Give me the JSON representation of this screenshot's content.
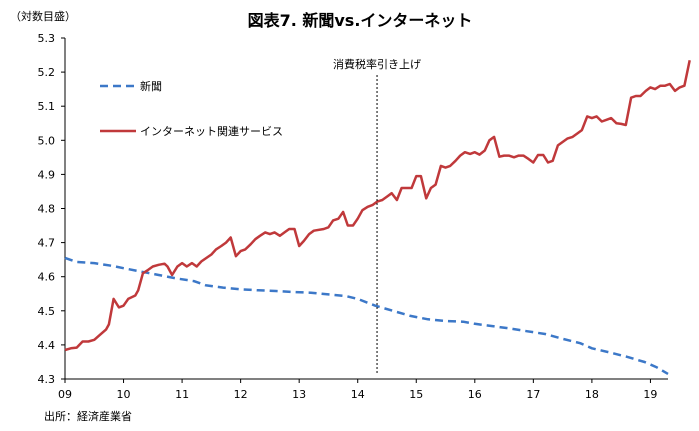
{
  "chart_data": {
    "type": "line",
    "title": "図表7. 新聞vs.インターネット",
    "ylabel": "（対数目盛）",
    "ylim": [
      4.3,
      5.3
    ],
    "yticks": [
      4.3,
      4.4,
      4.5,
      4.6,
      4.7,
      4.8,
      4.9,
      5.0,
      5.1,
      5.2,
      5.3
    ],
    "ytick_labels": [
      "4.3",
      "4.4",
      "4.5",
      "4.6",
      "4.7",
      "4.8",
      "4.9",
      "5.0",
      "5.1",
      "5.2",
      "5.3"
    ],
    "xlim": [
      2009.0,
      2019.3
    ],
    "xticks": [
      2009,
      2010,
      2011,
      2012,
      2013,
      2014,
      2015,
      2016,
      2017,
      2018,
      2019
    ],
    "xtick_labels": [
      "09",
      "10",
      "11",
      "12",
      "13",
      "14",
      "15",
      "16",
      "17",
      "18",
      "19"
    ],
    "annotation": {
      "label": "消費税率引き上げ",
      "x": 2014.33
    },
    "source": "出所：経済産業省",
    "series": [
      {
        "name": "新聞",
        "color": "#3c78c8",
        "style": "dashed",
        "points": [
          [
            2009.0,
            4.655
          ],
          [
            2009.2,
            4.643
          ],
          [
            2009.5,
            4.64
          ],
          [
            2009.8,
            4.632
          ],
          [
            2010.0,
            4.625
          ],
          [
            2010.3,
            4.615
          ],
          [
            2010.6,
            4.605
          ],
          [
            2010.9,
            4.595
          ],
          [
            2011.2,
            4.587
          ],
          [
            2011.4,
            4.575
          ],
          [
            2011.7,
            4.568
          ],
          [
            2012.0,
            4.563
          ],
          [
            2012.3,
            4.56
          ],
          [
            2012.6,
            4.558
          ],
          [
            2012.9,
            4.555
          ],
          [
            2013.2,
            4.553
          ],
          [
            2013.5,
            4.548
          ],
          [
            2013.8,
            4.543
          ],
          [
            2014.0,
            4.535
          ],
          [
            2014.3,
            4.515
          ],
          [
            2014.6,
            4.5
          ],
          [
            2014.9,
            4.485
          ],
          [
            2015.2,
            4.475
          ],
          [
            2015.5,
            4.47
          ],
          [
            2015.8,
            4.468
          ],
          [
            2016.0,
            4.462
          ],
          [
            2016.3,
            4.455
          ],
          [
            2016.6,
            4.448
          ],
          [
            2016.9,
            4.44
          ],
          [
            2017.2,
            4.432
          ],
          [
            2017.5,
            4.418
          ],
          [
            2017.8,
            4.405
          ],
          [
            2018.0,
            4.39
          ],
          [
            2018.3,
            4.378
          ],
          [
            2018.6,
            4.365
          ],
          [
            2018.9,
            4.35
          ],
          [
            2019.1,
            4.335
          ],
          [
            2019.3,
            4.315
          ]
        ]
      },
      {
        "name": "インターネット関連サービス",
        "color": "#c0393b",
        "style": "solid",
        "points": [
          [
            2009.0,
            4.385
          ],
          [
            2009.1,
            4.39
          ],
          [
            2009.2,
            4.392
          ],
          [
            2009.3,
            4.41
          ],
          [
            2009.4,
            4.41
          ],
          [
            2009.5,
            4.415
          ],
          [
            2009.6,
            4.43
          ],
          [
            2009.7,
            4.445
          ],
          [
            2009.75,
            4.46
          ],
          [
            2009.83,
            4.535
          ],
          [
            2009.92,
            4.51
          ],
          [
            2010.0,
            4.515
          ],
          [
            2010.08,
            4.535
          ],
          [
            2010.2,
            4.545
          ],
          [
            2010.25,
            4.56
          ],
          [
            2010.33,
            4.61
          ],
          [
            2010.42,
            4.62
          ],
          [
            2010.5,
            4.63
          ],
          [
            2010.6,
            4.635
          ],
          [
            2010.7,
            4.638
          ],
          [
            2010.75,
            4.63
          ],
          [
            2010.83,
            4.605
          ],
          [
            2010.92,
            4.63
          ],
          [
            2011.0,
            4.64
          ],
          [
            2011.08,
            4.63
          ],
          [
            2011.17,
            4.64
          ],
          [
            2011.25,
            4.63
          ],
          [
            2011.33,
            4.645
          ],
          [
            2011.5,
            4.665
          ],
          [
            2011.58,
            4.68
          ],
          [
            2011.67,
            4.69
          ],
          [
            2011.75,
            4.7
          ],
          [
            2011.83,
            4.715
          ],
          [
            2011.92,
            4.66
          ],
          [
            2012.0,
            4.675
          ],
          [
            2012.08,
            4.68
          ],
          [
            2012.17,
            4.695
          ],
          [
            2012.25,
            4.71
          ],
          [
            2012.33,
            4.72
          ],
          [
            2012.42,
            4.73
          ],
          [
            2012.5,
            4.725
          ],
          [
            2012.58,
            4.73
          ],
          [
            2012.67,
            4.72
          ],
          [
            2012.75,
            4.73
          ],
          [
            2012.83,
            4.74
          ],
          [
            2012.92,
            4.74
          ],
          [
            2013.0,
            4.69
          ],
          [
            2013.08,
            4.705
          ],
          [
            2013.17,
            4.725
          ],
          [
            2013.25,
            4.735
          ],
          [
            2013.42,
            4.74
          ],
          [
            2013.5,
            4.745
          ],
          [
            2013.58,
            4.765
          ],
          [
            2013.67,
            4.77
          ],
          [
            2013.75,
            4.79
          ],
          [
            2013.83,
            4.75
          ],
          [
            2013.92,
            4.75
          ],
          [
            2014.0,
            4.77
          ],
          [
            2014.08,
            4.795
          ],
          [
            2014.17,
            4.805
          ],
          [
            2014.25,
            4.81
          ],
          [
            2014.33,
            4.82
          ],
          [
            2014.42,
            4.825
          ],
          [
            2014.5,
            4.835
          ],
          [
            2014.58,
            4.845
          ],
          [
            2014.67,
            4.825
          ],
          [
            2014.75,
            4.86
          ],
          [
            2014.83,
            4.86
          ],
          [
            2014.92,
            4.86
          ],
          [
            2015.0,
            4.895
          ],
          [
            2015.08,
            4.895
          ],
          [
            2015.17,
            4.83
          ],
          [
            2015.25,
            4.86
          ],
          [
            2015.33,
            4.87
          ],
          [
            2015.42,
            4.925
          ],
          [
            2015.5,
            4.92
          ],
          [
            2015.58,
            4.925
          ],
          [
            2015.67,
            4.94
          ],
          [
            2015.75,
            4.955
          ],
          [
            2015.83,
            4.965
          ],
          [
            2015.92,
            4.96
          ],
          [
            2016.0,
            4.965
          ],
          [
            2016.08,
            4.958
          ],
          [
            2016.17,
            4.97
          ],
          [
            2016.25,
            5.0
          ],
          [
            2016.33,
            5.01
          ],
          [
            2016.42,
            4.952
          ],
          [
            2016.5,
            4.955
          ],
          [
            2016.58,
            4.955
          ],
          [
            2016.67,
            4.95
          ],
          [
            2016.75,
            4.955
          ],
          [
            2016.83,
            4.955
          ],
          [
            2016.92,
            4.945
          ],
          [
            2017.0,
            4.935
          ],
          [
            2017.08,
            4.957
          ],
          [
            2017.17,
            4.957
          ],
          [
            2017.25,
            4.935
          ],
          [
            2017.33,
            4.94
          ],
          [
            2017.42,
            4.985
          ],
          [
            2017.5,
            4.995
          ],
          [
            2017.58,
            5.005
          ],
          [
            2017.67,
            5.01
          ],
          [
            2017.75,
            5.02
          ],
          [
            2017.83,
            5.03
          ],
          [
            2017.92,
            5.07
          ],
          [
            2018.0,
            5.065
          ],
          [
            2018.08,
            5.07
          ],
          [
            2018.17,
            5.055
          ],
          [
            2018.25,
            5.06
          ],
          [
            2018.33,
            5.065
          ],
          [
            2018.42,
            5.05
          ],
          [
            2018.5,
            5.048
          ],
          [
            2018.58,
            5.045
          ],
          [
            2018.67,
            5.125
          ],
          [
            2018.75,
            5.13
          ],
          [
            2018.83,
            5.13
          ],
          [
            2018.92,
            5.145
          ],
          [
            2019.0,
            5.155
          ],
          [
            2019.08,
            5.15
          ],
          [
            2019.17,
            5.16
          ],
          [
            2019.25,
            5.16
          ],
          [
            2019.33,
            5.165
          ],
          [
            2019.42,
            5.145
          ],
          [
            2019.5,
            5.155
          ],
          [
            2019.58,
            5.16
          ],
          [
            2019.67,
            5.235
          ]
        ]
      }
    ]
  }
}
